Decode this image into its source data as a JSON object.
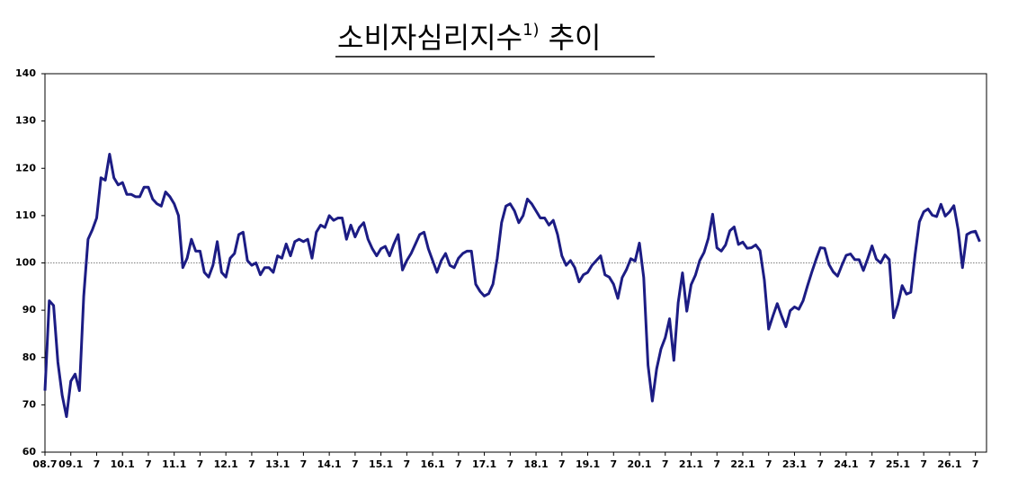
{
  "chart_data": {
    "type": "line",
    "title": "소비자심리지수",
    "title_note": "1)",
    "title_suffix": "추이",
    "color": "#1c1c84",
    "reference_line": 100,
    "ylim": [
      60,
      140
    ],
    "yticks": [
      60,
      70,
      80,
      90,
      100,
      110,
      120,
      130,
      140
    ],
    "categories": [
      "08.7",
      null,
      null,
      null,
      null,
      null,
      "09.1",
      null,
      null,
      null,
      null,
      null,
      "7",
      null,
      null,
      null,
      null,
      null,
      "10.1",
      null,
      null,
      null,
      null,
      null,
      "7",
      null,
      null,
      null,
      null,
      null,
      "11.1",
      null,
      null,
      null,
      null,
      null,
      "7",
      null,
      null,
      null,
      null,
      null,
      "12.1",
      null,
      null,
      null,
      null,
      null,
      "7",
      null,
      null,
      null,
      null,
      null,
      "13.1",
      null,
      null,
      null,
      null,
      null,
      "7",
      null,
      null,
      null,
      null,
      null,
      "14.1",
      null,
      null,
      null,
      null,
      null,
      "7",
      null,
      null,
      null,
      null,
      null,
      "15.1",
      null,
      null,
      null,
      null,
      null,
      "7",
      null,
      null,
      null,
      null,
      null,
      "16.1",
      null,
      null,
      null,
      null,
      null,
      "7",
      null,
      null,
      null,
      null,
      null,
      "17.1",
      null,
      null,
      null,
      null,
      null,
      "7",
      null,
      null,
      null,
      null,
      null,
      "18.1",
      null,
      null,
      null,
      null,
      null,
      "7",
      null,
      null,
      null,
      null,
      null,
      "19.1",
      null,
      null,
      null,
      null,
      null,
      "7",
      null,
      null,
      null,
      null,
      null,
      "20.1",
      null,
      null,
      null,
      null,
      null,
      "7",
      null,
      null,
      null,
      null,
      null,
      "21.1",
      null,
      null,
      null,
      null,
      null,
      "7",
      null,
      null,
      null,
      null,
      null,
      "22.1",
      null,
      null,
      null,
      null,
      null,
      "7",
      null,
      null,
      null,
      null,
      null,
      "23.1",
      null,
      null,
      null,
      null,
      null,
      "7",
      null,
      null,
      null,
      null,
      null,
      "24.1",
      null,
      null,
      null,
      null,
      null,
      "7",
      null,
      null,
      null,
      null,
      null,
      "25.1",
      null,
      null,
      null,
      null,
      null,
      "7",
      null,
      null,
      null,
      null,
      null,
      "26.1",
      null,
      null,
      null,
      null,
      null,
      "7",
      null
    ],
    "values": [
      73,
      92,
      91,
      79,
      72,
      67.5,
      75,
      76.5,
      73,
      93,
      105,
      107,
      109.5,
      118,
      117.5,
      123,
      118,
      116.5,
      117,
      114.5,
      114.5,
      114,
      114,
      116,
      116,
      113.5,
      112.5,
      112,
      115,
      114,
      112.5,
      110,
      99,
      101,
      105,
      102.5,
      102.5,
      98,
      97,
      99.5,
      104.5,
      98,
      97,
      101,
      102,
      106,
      106.5,
      100.5,
      99.5,
      100,
      97.5,
      99,
      99,
      98,
      101.5,
      101,
      104,
      101.5,
      104.5,
      105,
      104.5,
      105,
      101,
      106.5,
      108,
      107.5,
      110,
      109,
      109.5,
      109.5,
      105,
      108,
      105.5,
      107.5,
      108.5,
      105,
      103,
      101.5,
      103,
      103.5,
      101.5,
      104,
      106,
      98.5,
      100.5,
      102,
      104,
      106,
      106.5,
      103,
      100.5,
      98,
      100.5,
      102,
      99.5,
      99,
      101,
      102,
      102.5,
      102.5,
      95.5,
      94,
      93,
      93.5,
      95.5,
      101,
      108.5,
      112,
      112.5,
      111,
      108.5,
      110,
      113.5,
      112.5,
      111,
      109.5,
      109.5,
      108,
      109,
      106,
      101.5,
      99.5,
      100.5,
      99,
      96,
      97.5,
      98,
      99.5,
      100.5,
      101.5,
      97.5,
      97,
      95.5,
      92.5,
      96.9,
      98.6,
      100.9,
      100.4,
      104.2,
      96.9,
      78.4,
      70.8,
      77.6,
      81.8,
      84.2,
      88.2,
      79.4,
      91.6,
      97.9,
      89.8,
      95.4,
      97.4,
      100.5,
      102.2,
      105.2,
      110.3,
      103.2,
      102.5,
      103.8,
      106.8,
      107.6,
      103.9,
      104.4,
      103.1,
      103.2,
      103.8,
      102.6,
      96.4,
      86,
      88.8,
      91.4,
      88.8,
      86.5,
      89.9,
      90.7,
      90.2,
      92,
      95.1,
      98,
      100.7,
      103.2,
      103.1,
      99.7,
      98.1,
      97.2,
      99.5,
      101.6,
      101.9,
      100.7,
      100.7,
      98.4,
      100.9,
      103.6,
      100.8,
      100,
      101.7,
      100.7,
      88.4,
      91.2,
      95.2,
      93.4,
      93.8,
      101.8,
      108.7,
      110.8,
      111.4,
      110.1,
      109.8,
      112.4,
      109.9,
      110.8,
      112.1,
      107,
      99,
      106,
      106.5,
      106.7,
      104.5
    ]
  }
}
